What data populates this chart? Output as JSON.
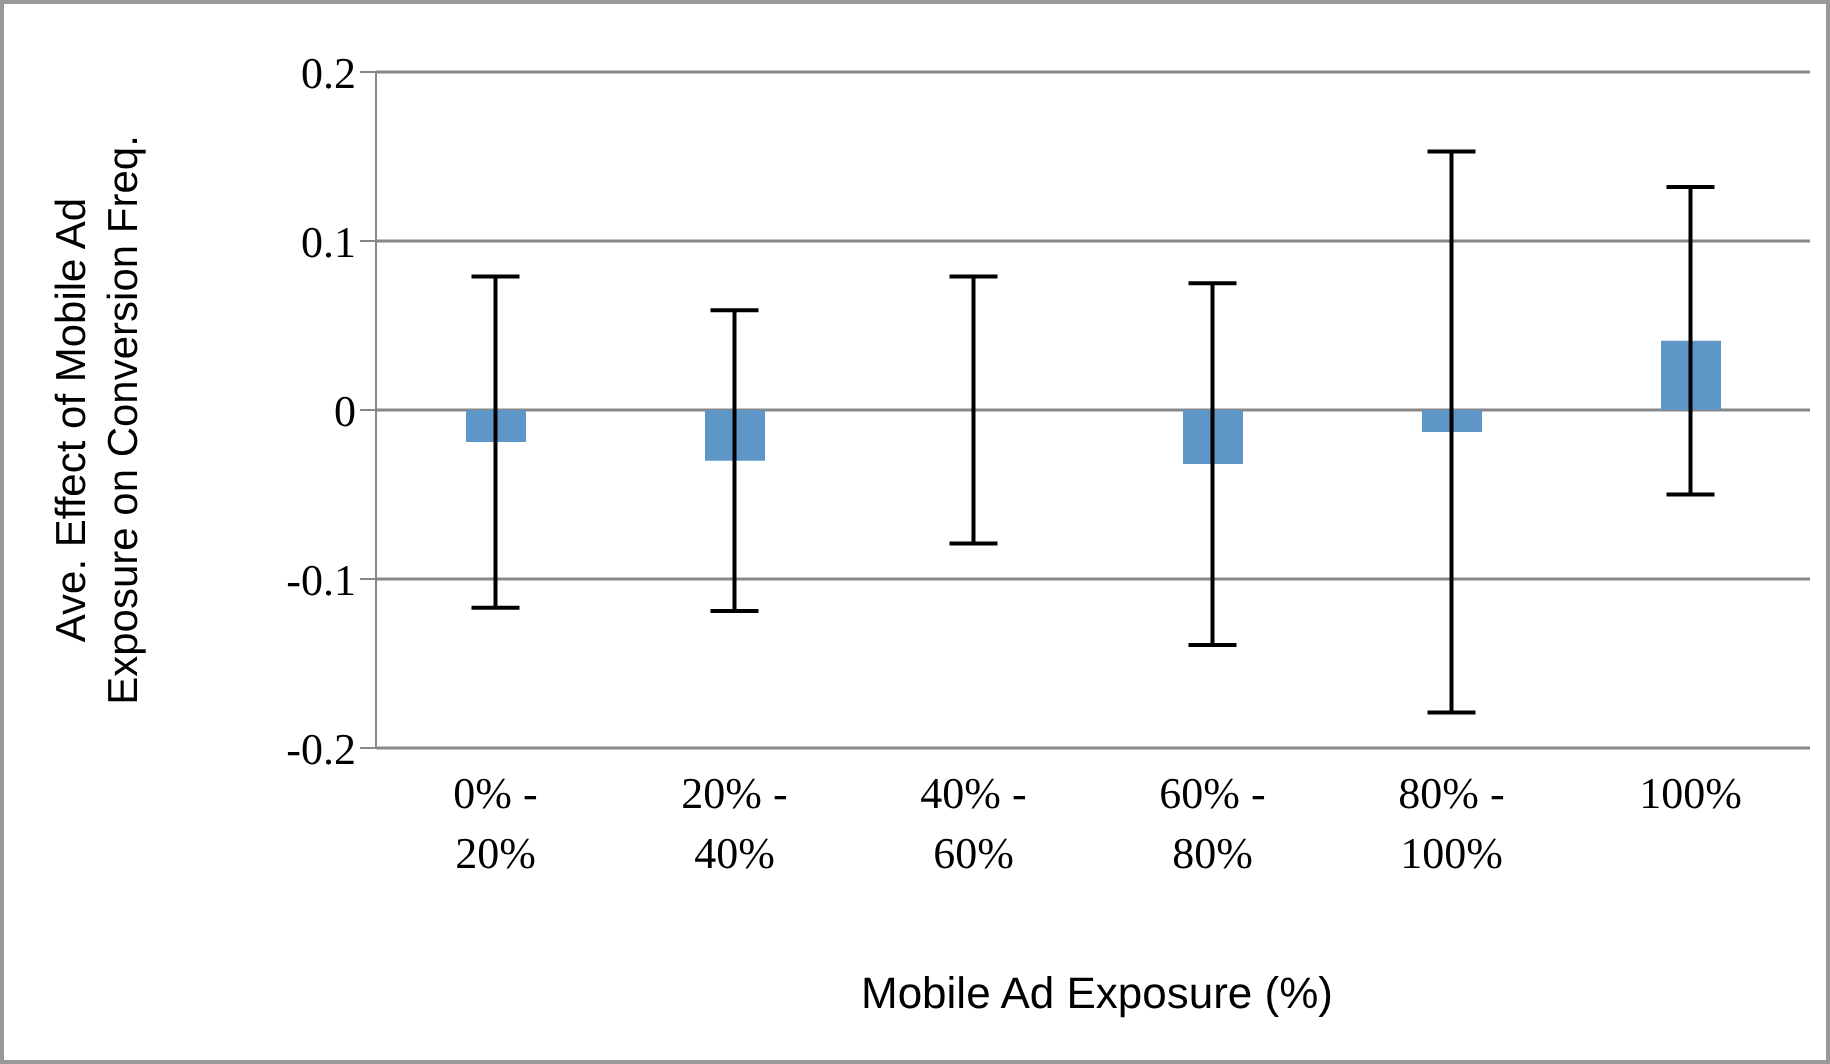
{
  "chart_data": {
    "type": "bar",
    "xlabel": "Mobile Ad Exposure (%)",
    "ylabel": "Ave. Effect of Mobile Ad Exposure on Conversion Freq.",
    "categories": [
      "0% - 20%",
      "20% - 40%",
      "40% - 60%",
      "60% - 80%",
      "80% - 100%",
      "100%"
    ],
    "values": [
      -0.019,
      -0.03,
      0,
      -0.032,
      -0.013,
      0.041
    ],
    "errors": [
      0.098,
      0.089,
      0.079,
      0.107,
      0.166,
      0.091
    ],
    "color": "#5f96c8",
    "ylim": [
      -0.2,
      0.2
    ],
    "yticks": [
      -0.2,
      -0.1,
      0,
      0.1,
      0.2
    ],
    "grid": "y"
  }
}
